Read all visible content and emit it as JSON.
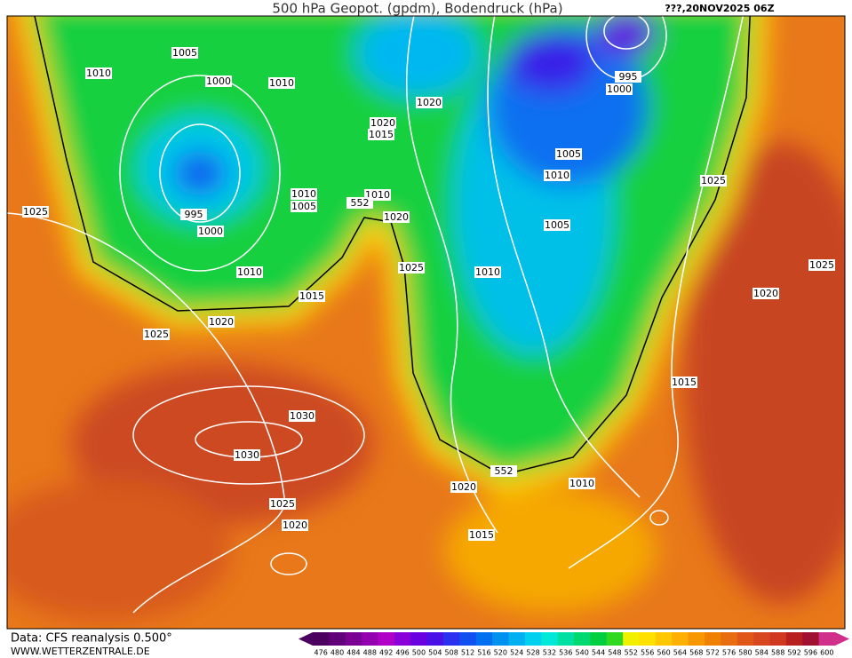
{
  "header": {
    "title": "500 hPa Geopot. (gpdm), Bodendruck (hPa)",
    "date": "???,20NOV2025 06Z"
  },
  "footer": {
    "source": "Data: CFS reanalysis 0.500°",
    "site": "WWW.WETTERZENTRALE.DE"
  },
  "isobar_labels": [
    1005,
    1010,
    1000,
    1010,
    1025,
    995,
    1000,
    1010,
    1005,
    1010,
    552,
    1020,
    1020,
    1015,
    1020,
    995,
    1000,
    1005,
    1010,
    1005,
    1025,
    1025,
    1010,
    1025,
    1010,
    1015,
    1020,
    1020,
    1025,
    1015,
    1030,
    1030,
    552,
    1020,
    1010,
    1025,
    1020,
    1015
  ],
  "colorbar": {
    "ticks": [
      476,
      480,
      484,
      488,
      492,
      496,
      500,
      504,
      508,
      512,
      516,
      520,
      524,
      528,
      532,
      536,
      540,
      544,
      548,
      552,
      556,
      560,
      564,
      568,
      572,
      576,
      580,
      584,
      588,
      592,
      596,
      600
    ],
    "colors": [
      "#4b0060",
      "#62007a",
      "#7a0094",
      "#9400b0",
      "#b000c8",
      "#8a00d8",
      "#6a00e0",
      "#4a10e8",
      "#2a30f0",
      "#1050f0",
      "#0070f0",
      "#0090f0",
      "#00b0f0",
      "#00d0f0",
      "#00e8d8",
      "#00e0a0",
      "#00d870",
      "#00d040",
      "#30d820",
      "#f0f000",
      "#ffe000",
      "#ffc800",
      "#ffb000",
      "#f89800",
      "#f08000",
      "#e86c10",
      "#e05818",
      "#d84820",
      "#d03820",
      "#b82020",
      "#a01030",
      "#d0308c"
    ]
  }
}
